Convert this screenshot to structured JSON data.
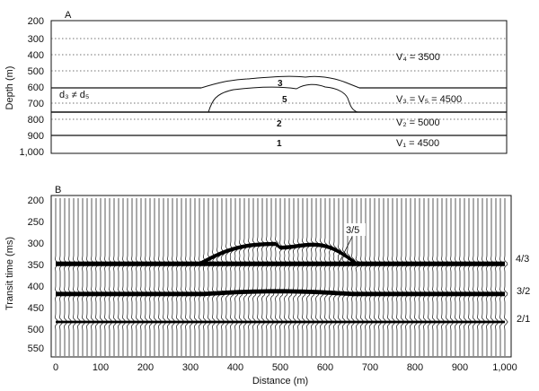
{
  "panel_a": {
    "label": "A",
    "ylabel": "Depth (m)",
    "yticks": [
      "200",
      "300",
      "400",
      "500",
      "600",
      "700",
      "800",
      "900",
      "1,000"
    ],
    "annotations": {
      "layer3": "3",
      "layer5": "5",
      "layer2": "2",
      "layer1": "1",
      "d_note": "d₃ ≠ d₅",
      "v4": "V₄ = 3500",
      "v3v5": "V₃ = V₅ = 4500",
      "v2": "V₂ = 5000",
      "v1": "V₁ = 4500"
    }
  },
  "panel_b": {
    "label": "B",
    "ylabel": "Transit time (ms)",
    "xlabel": "Distance (m)",
    "yticks": [
      "200",
      "250",
      "300",
      "350",
      "400",
      "450",
      "500",
      "550"
    ],
    "xticks": [
      "0",
      "100",
      "200",
      "300",
      "400",
      "500",
      "600",
      "700",
      "800",
      "900",
      "1,000"
    ],
    "reflector_labels": {
      "r35": "3/5",
      "r43": "4/3",
      "r32": "3/2",
      "r21": "2/1"
    }
  },
  "chart_data": [
    {
      "type": "area",
      "panel": "A",
      "xlim": [
        0,
        1000
      ],
      "ylim": [
        1000,
        200
      ],
      "interfaces_depth_m": {
        "layer4_to_3": 600,
        "layer3_to_2": 750,
        "layer2_to_1": 900
      },
      "velocities": {
        "V4": 3500,
        "V3": 4500,
        "V5": 4500,
        "V2": 5000,
        "V1": 4500
      }
    },
    {
      "type": "line",
      "panel": "B",
      "xlim": [
        0,
        1000
      ],
      "ylim": [
        550,
        200
      ],
      "reflector_times_ms": {
        "4/3": 340,
        "3/2": 410,
        "2/1": 475
      }
    }
  ]
}
